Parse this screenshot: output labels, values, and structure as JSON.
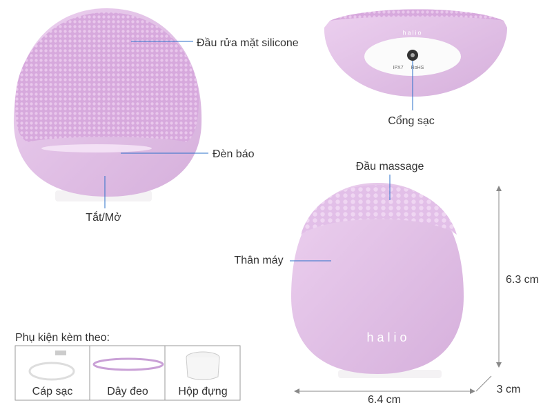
{
  "labels": {
    "silicone_head": "Đầu rửa mặt silicone",
    "indicator": "Đèn báo",
    "power": "Tắt/Mở",
    "charging_port": "Cổng sạc",
    "massage_head": "Đầu massage",
    "body": "Thân máy"
  },
  "device": {
    "brand": "halio",
    "rating": "IPX7",
    "compliance": "RoHS"
  },
  "dimensions": {
    "height": "6.3 cm",
    "depth": "3 cm",
    "width": "6.4 cm"
  },
  "accessories": {
    "title": "Phụ kiện kèm theo:",
    "items": [
      "Cáp sạc",
      "Dây đeo",
      "Hộp đựng"
    ]
  }
}
